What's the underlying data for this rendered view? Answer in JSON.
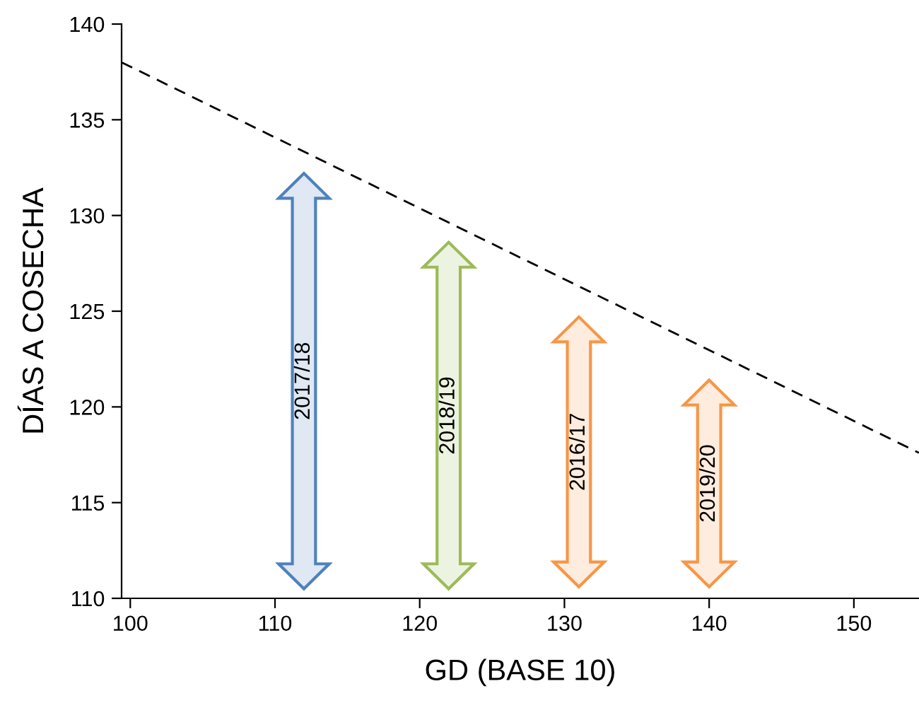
{
  "chart_data": {
    "type": "bar",
    "xlabel": "GD (BASE 10)",
    "ylabel": "DÍAS A COSECHA",
    "series": [
      {
        "x": [
          112,
          122,
          131,
          140
        ],
        "base": [
          110.5,
          110.5,
          110.6,
          110.6
        ],
        "values": [
          21.7,
          18.1,
          14.1,
          10.8
        ],
        "colors": [
          "#4f81bd",
          "#9bbb59",
          "#f79646",
          "#f79646"
        ]
      },
      {
        "type": "line",
        "x": [
          99.4,
          154.5
        ],
        "values": [
          138,
          117.6
        ],
        "color": "#000000",
        "line_style": "dashed"
      }
    ],
    "xlim": [
      99.4,
      154.5
    ],
    "ylim": [
      110,
      140
    ],
    "xticks": [
      100,
      110,
      120,
      130,
      140,
      150
    ],
    "yticks": [
      110,
      115,
      120,
      125,
      130,
      135,
      140
    ],
    "grid": false,
    "legend": false,
    "annotations": [
      "2017/18",
      "2018/19",
      "2016/17",
      "2019/20"
    ]
  }
}
